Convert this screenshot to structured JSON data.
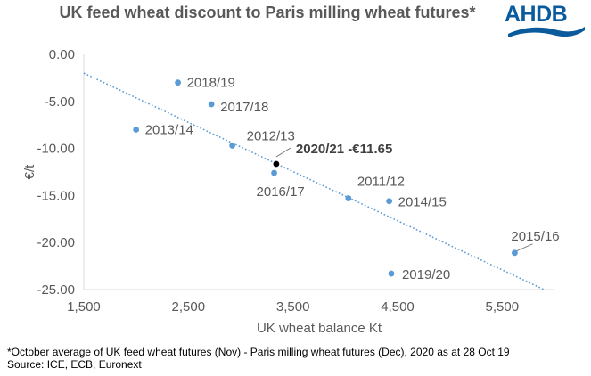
{
  "header": {
    "title": "UK feed wheat discount to Paris milling wheat futures*",
    "logo_text": "AHDB",
    "brand_color": "#0a5a9c"
  },
  "footnote": {
    "line1": "*October average of UK feed wheat futures (Nov) - Paris milling wheat futures (Dec), 2020 as at 28 Oct 19",
    "line2": "Source: ICE, ECB, Euronext"
  },
  "chart_data": {
    "type": "scatter",
    "title": "UK feed wheat discount to Paris milling wheat futures*",
    "xlabel": "UK wheat balance Kt",
    "ylabel": "€/t",
    "xlim": [
      1500,
      6000
    ],
    "ylim": [
      -25,
      0
    ],
    "x_ticks": [
      1500,
      2500,
      3500,
      4500,
      5500
    ],
    "x_tick_labels": [
      "1,500",
      "2,500",
      "3,500",
      "4,500",
      "5,500"
    ],
    "y_ticks": [
      0,
      -5,
      -10,
      -15,
      -20,
      -25
    ],
    "y_tick_labels": [
      "0.00",
      "-5.00",
      "-10.00",
      "-15.00",
      "-20.00",
      "-25.00"
    ],
    "grid": false,
    "marker_color": "#5b9bd5",
    "highlight_color": "#000000",
    "trendline": {
      "style": "dotted",
      "color": "#5b9bd5",
      "x": [
        1500,
        5900
      ],
      "y": [
        -2.0,
        -25.0
      ]
    },
    "points": [
      {
        "label": "2018/19",
        "x": 2400,
        "y": -3.0
      },
      {
        "label": "2017/18",
        "x": 2720,
        "y": -5.3
      },
      {
        "label": "2013/14",
        "x": 2000,
        "y": -8.0
      },
      {
        "label": "2012/13",
        "x": 2920,
        "y": -9.7
      },
      {
        "label": "2020/21 -€11.65",
        "x": 3340,
        "y": -11.65,
        "highlight": true
      },
      {
        "label": "2016/17",
        "x": 3320,
        "y": -12.6
      },
      {
        "label": "2011/12",
        "x": 4030,
        "y": -15.3
      },
      {
        "label": "2014/15",
        "x": 4420,
        "y": -15.6
      },
      {
        "label": "2015/16",
        "x": 5620,
        "y": -21.1
      },
      {
        "label": "2019/20",
        "x": 4440,
        "y": -23.3
      }
    ]
  }
}
